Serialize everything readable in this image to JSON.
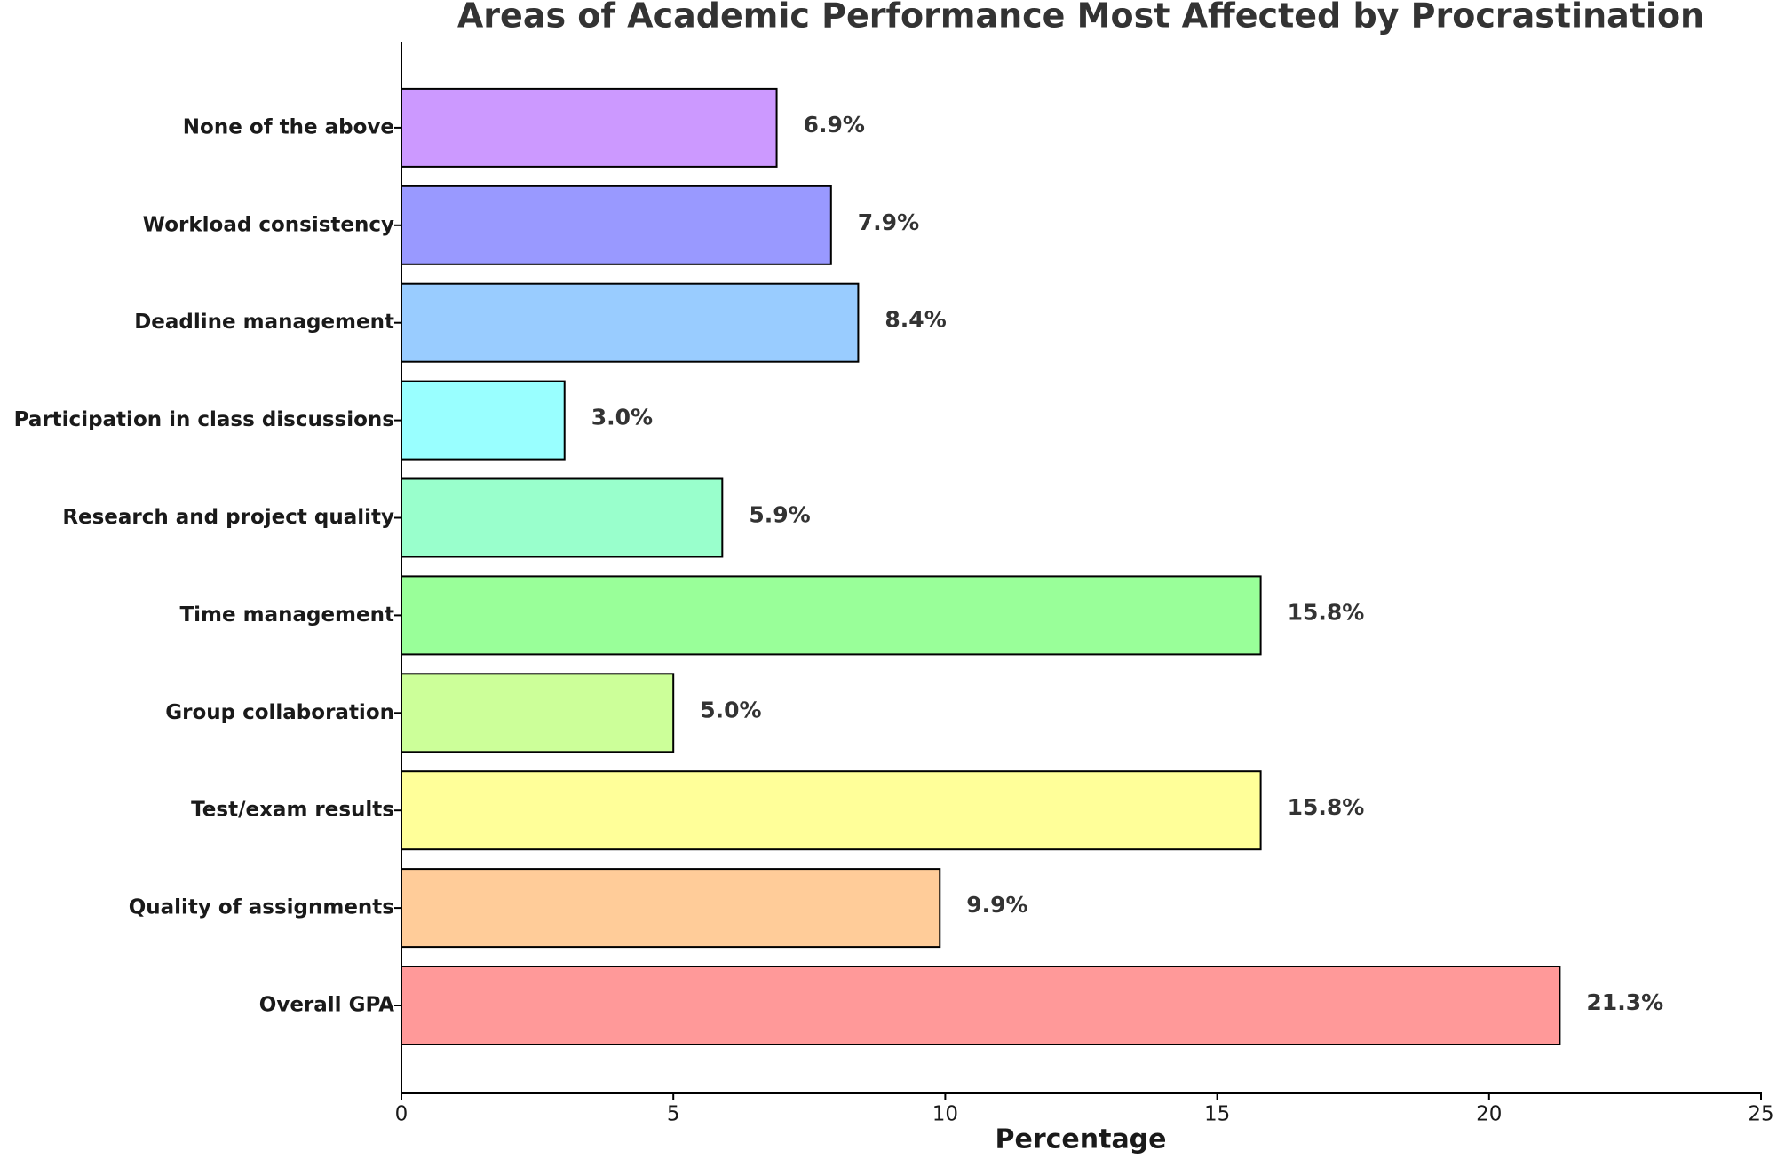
{
  "chart_data": {
    "type": "barh",
    "title": "Areas of Academic Performance Most Affected by Procrastination",
    "x_label": "Percentage",
    "categories": [
      "Overall GPA",
      "Quality of assignments",
      "Test/exam results",
      "Group collaboration",
      "Time management",
      "Research and project quality",
      "Participation in class discussions",
      "Deadline management",
      "Workload consistency",
      "None of the above"
    ],
    "values": [
      21.3,
      9.9,
      15.8,
      5.0,
      15.8,
      5.9,
      3.0,
      8.4,
      7.9,
      6.9
    ],
    "value_labels": [
      "21.3%",
      "9.9%",
      "15.8%",
      "5.0%",
      "15.8%",
      "5.9%",
      "3.0%",
      "8.4%",
      "7.9%",
      "6.9%"
    ],
    "colors": [
      "#ff9999",
      "#ffcc99",
      "#ffff99",
      "#ccff99",
      "#99ff99",
      "#99ffcc",
      "#99ffff",
      "#99ccff",
      "#9999ff",
      "#cc99ff"
    ],
    "xlim": [
      0,
      25
    ],
    "xticks": [
      0,
      5,
      10,
      15,
      20,
      25
    ],
    "grid": false
  }
}
